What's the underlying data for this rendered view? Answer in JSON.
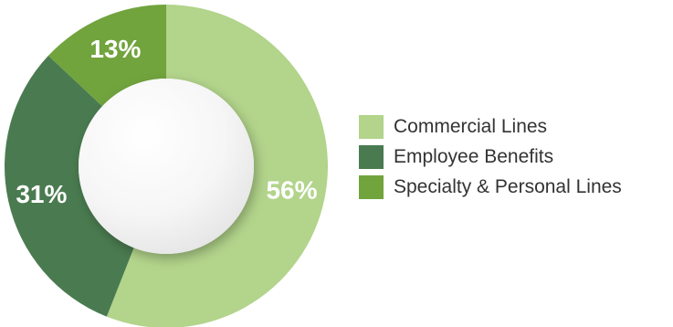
{
  "chart_data": {
    "type": "pie",
    "variant": "donut",
    "title": "",
    "start_angle_deg": 0,
    "direction": "clockwise",
    "slices": [
      {
        "label": "Commercial Lines",
        "value": 56,
        "display": "56%",
        "color": "#b2d48b"
      },
      {
        "label": "Employee Benefits",
        "value": 31,
        "display": "31%",
        "color": "#4a7b50"
      },
      {
        "label": "Specialty & Personal Lines",
        "value": 13,
        "display": "13%",
        "color": "#71a43d"
      }
    ],
    "legend": {
      "placement": "right",
      "items": [
        {
          "label": "Commercial Lines",
          "color": "#b2d48b"
        },
        {
          "label": "Employee Benefits",
          "color": "#4a7b50"
        },
        {
          "label": "Specialty & Personal Lines",
          "color": "#71a43d"
        }
      ]
    }
  }
}
